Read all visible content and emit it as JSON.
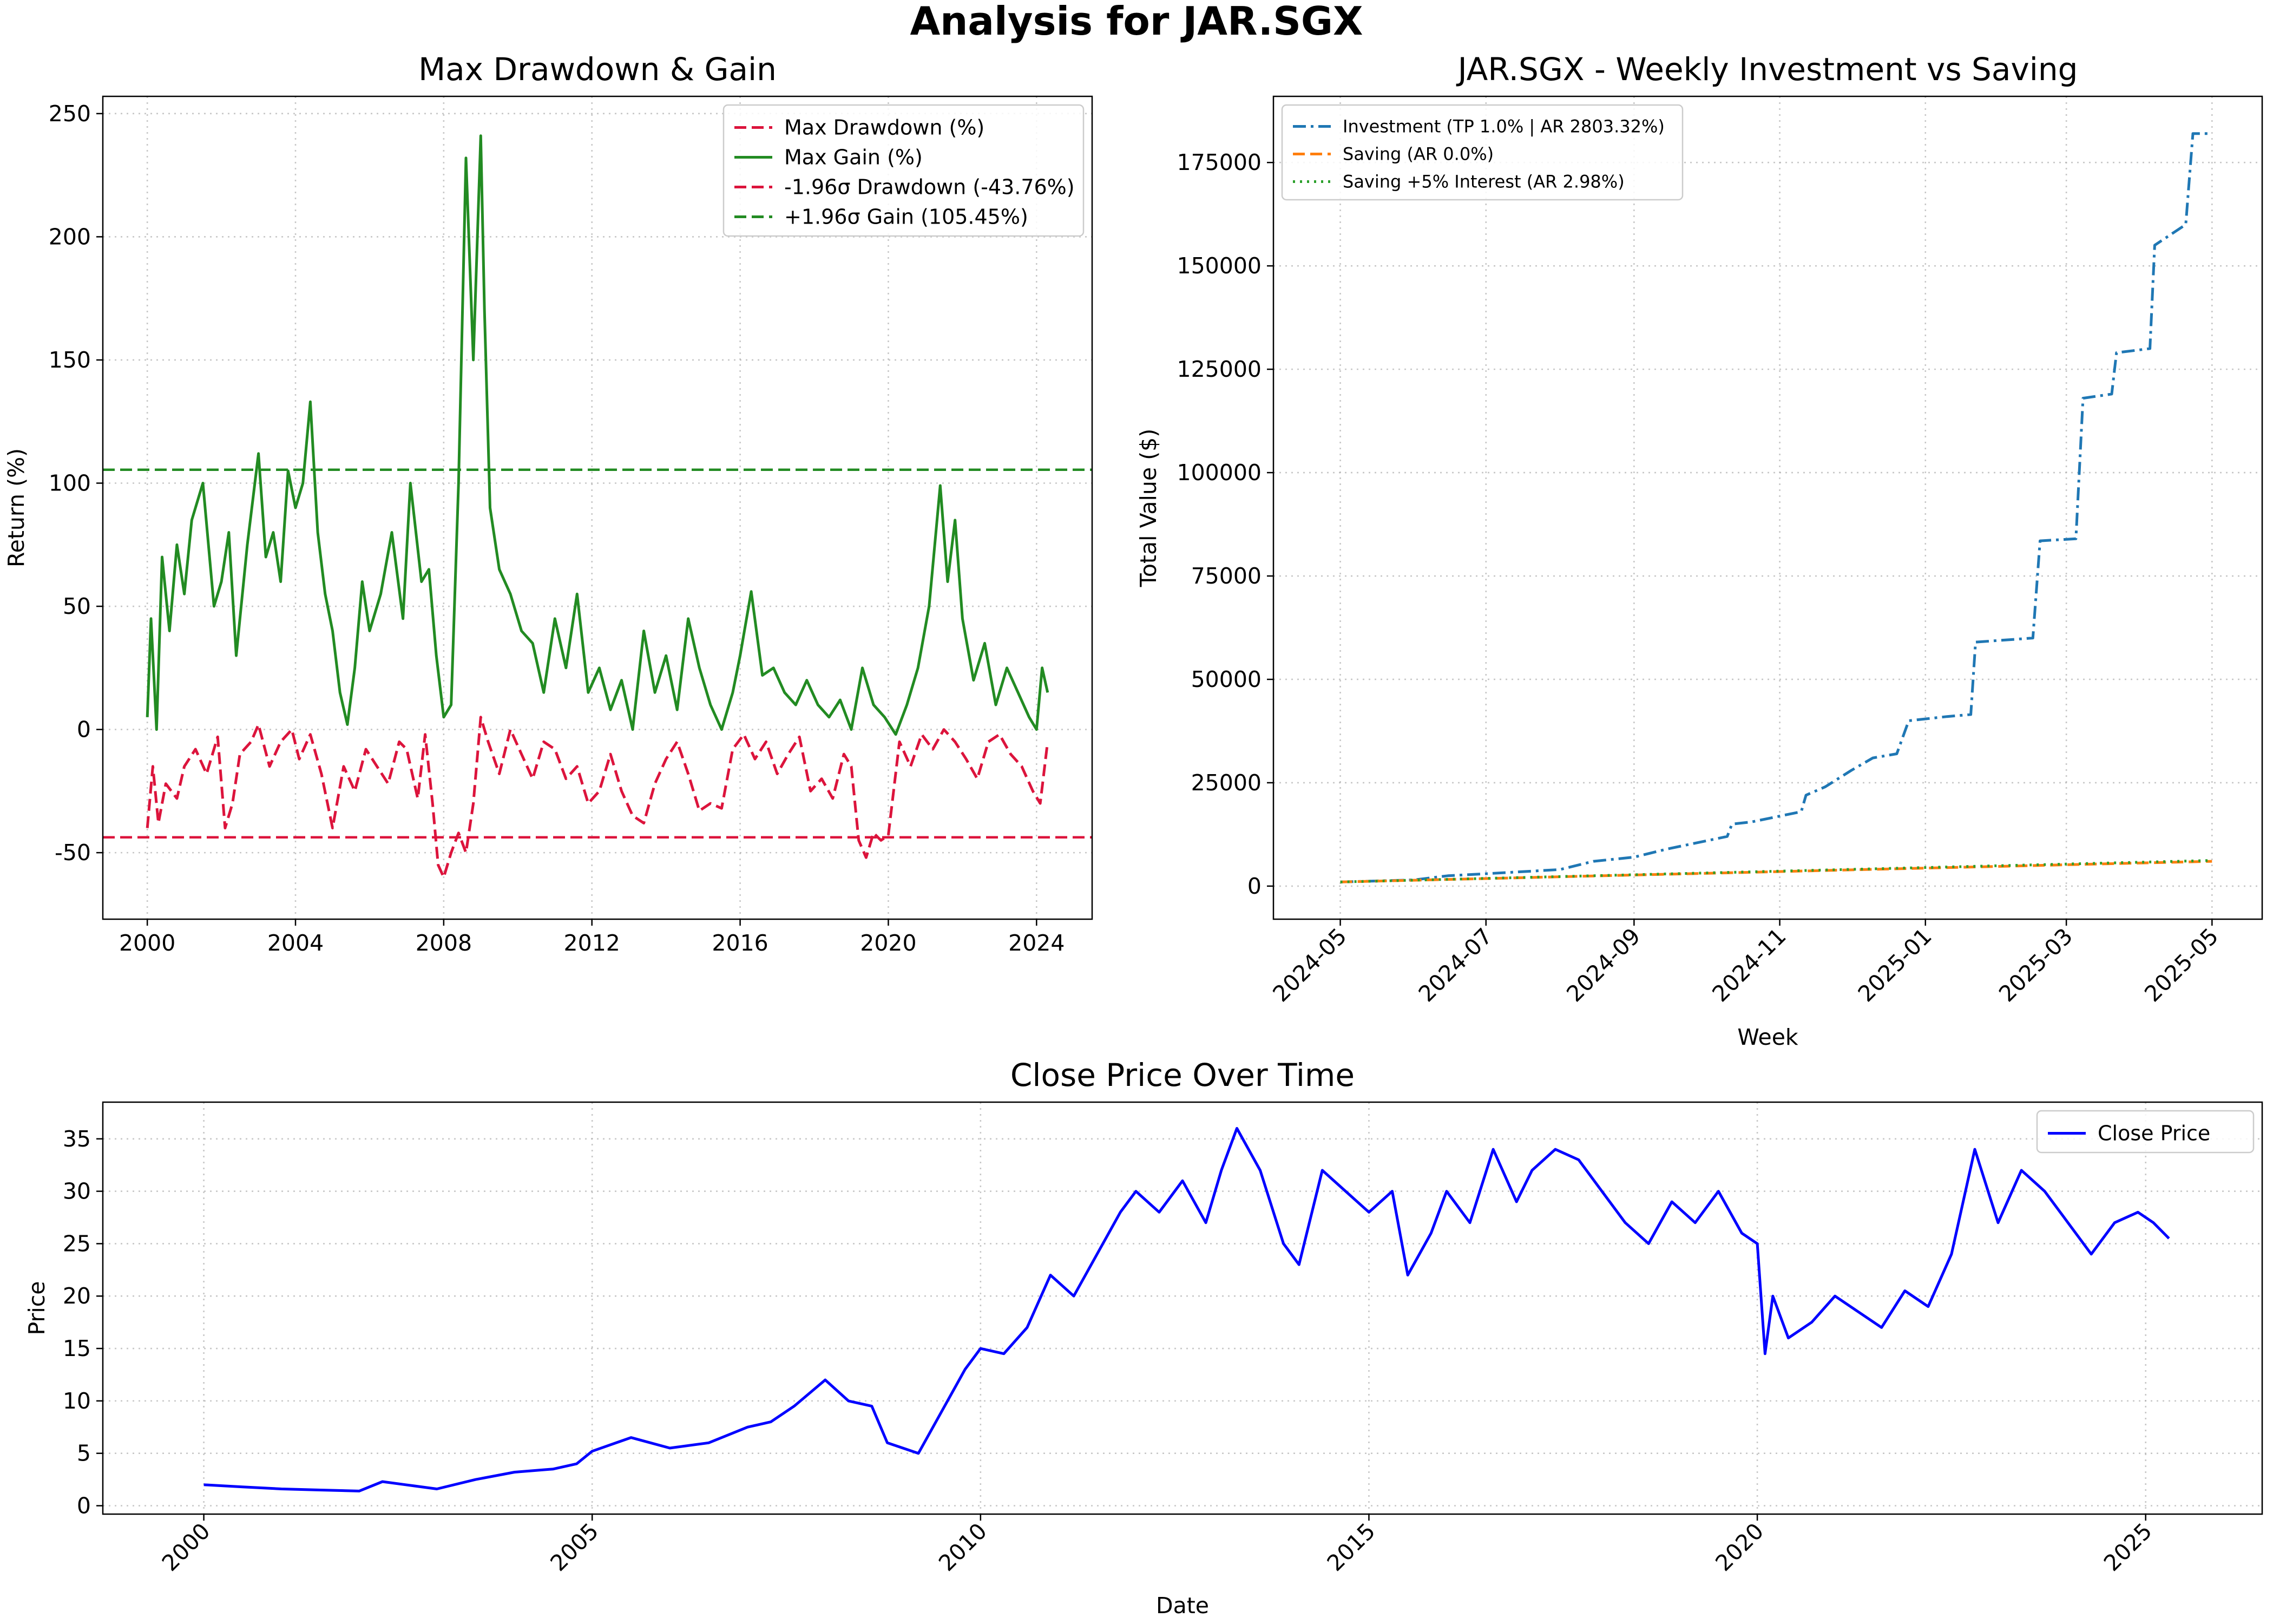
{
  "figure": {
    "title": "Analysis for JAR.SGX"
  },
  "chart_data": [
    {
      "id": "drawdown",
      "type": "line",
      "title": "Max Drawdown & Gain",
      "xlabel": "",
      "ylabel": "Return (%)",
      "xlim": [
        1998.8,
        2025.5
      ],
      "ylim": [
        -77,
        257
      ],
      "x_ticks": [
        2000,
        2004,
        2008,
        2012,
        2016,
        2020,
        2024
      ],
      "y_ticks": [
        -50,
        0,
        50,
        100,
        150,
        200,
        250
      ],
      "grid": true,
      "legend": "top-right",
      "series": [
        {
          "name": "Max Drawdown (%)",
          "color": "#dc143c",
          "style": "dashed",
          "x": [
            2000.0,
            2000.15,
            2000.3,
            2000.5,
            2000.8,
            2001.0,
            2001.3,
            2001.6,
            2001.9,
            2002.1,
            2002.3,
            2002.5,
            2002.8,
            2003.0,
            2003.3,
            2003.6,
            2003.9,
            2004.1,
            2004.4,
            2004.7,
            2005.0,
            2005.3,
            2005.6,
            2005.9,
            2006.2,
            2006.5,
            2006.8,
            2007.0,
            2007.3,
            2007.5,
            2007.7,
            2007.85,
            2008.0,
            2008.2,
            2008.4,
            2008.6,
            2008.8,
            2009.0,
            2009.2,
            2009.5,
            2009.8,
            2010.1,
            2010.4,
            2010.7,
            2011.0,
            2011.3,
            2011.6,
            2011.9,
            2012.2,
            2012.5,
            2012.8,
            2013.1,
            2013.4,
            2013.7,
            2014.0,
            2014.3,
            2014.6,
            2014.9,
            2015.2,
            2015.5,
            2015.8,
            2016.1,
            2016.4,
            2016.7,
            2017.0,
            2017.3,
            2017.6,
            2017.9,
            2018.2,
            2018.5,
            2018.8,
            2019.0,
            2019.2,
            2019.4,
            2019.6,
            2019.8,
            2020.0,
            2020.3,
            2020.6,
            2020.9,
            2021.2,
            2021.5,
            2021.8,
            2022.1,
            2022.4,
            2022.7,
            2023.0,
            2023.3,
            2023.6,
            2023.9,
            2024.1,
            2024.3
          ],
          "y": [
            -40,
            -15,
            -38,
            -22,
            -28,
            -15,
            -8,
            -18,
            -3,
            -40,
            -30,
            -10,
            -5,
            2,
            -15,
            -5,
            0,
            -12,
            -2,
            -18,
            -40,
            -15,
            -25,
            -8,
            -15,
            -22,
            -5,
            -8,
            -28,
            -2,
            -30,
            -55,
            -60,
            -50,
            -42,
            -50,
            -30,
            5,
            -5,
            -18,
            0,
            -10,
            -20,
            -5,
            -8,
            -20,
            -15,
            -30,
            -25,
            -10,
            -25,
            -35,
            -38,
            -22,
            -12,
            -5,
            -18,
            -33,
            -30,
            -32,
            -8,
            -2,
            -12,
            -5,
            -18,
            -10,
            -3,
            -25,
            -20,
            -28,
            -10,
            -15,
            -45,
            -52,
            -42,
            -45,
            -43,
            -5,
            -15,
            -2,
            -8,
            0,
            -5,
            -12,
            -20,
            -5,
            -2,
            -10,
            -15,
            -25,
            -30,
            -5
          ]
        },
        {
          "name": "Max Gain (%)",
          "color": "#228b22",
          "style": "solid",
          "x": [
            2000.0,
            2000.1,
            2000.25,
            2000.4,
            2000.6,
            2000.8,
            2001.0,
            2001.2,
            2001.5,
            2001.8,
            2002.0,
            2002.2,
            2002.4,
            2002.7,
            2003.0,
            2003.2,
            2003.4,
            2003.6,
            2003.8,
            2004.0,
            2004.2,
            2004.4,
            2004.6,
            2004.8,
            2005.0,
            2005.2,
            2005.4,
            2005.6,
            2005.8,
            2006.0,
            2006.3,
            2006.6,
            2006.9,
            2007.1,
            2007.4,
            2007.6,
            2007.8,
            2008.0,
            2008.2,
            2008.4,
            2008.6,
            2008.8,
            2009.0,
            2009.1,
            2009.25,
            2009.5,
            2009.8,
            2010.1,
            2010.4,
            2010.7,
            2011.0,
            2011.3,
            2011.6,
            2011.9,
            2012.2,
            2012.5,
            2012.8,
            2013.1,
            2013.4,
            2013.7,
            2014.0,
            2014.3,
            2014.6,
            2014.9,
            2015.2,
            2015.5,
            2015.8,
            2016.0,
            2016.3,
            2016.6,
            2016.9,
            2017.2,
            2017.5,
            2017.8,
            2018.1,
            2018.4,
            2018.7,
            2019.0,
            2019.3,
            2019.6,
            2019.9,
            2020.2,
            2020.5,
            2020.8,
            2021.1,
            2021.4,
            2021.6,
            2021.8,
            2022.0,
            2022.3,
            2022.6,
            2022.9,
            2023.2,
            2023.5,
            2023.8,
            2024.0,
            2024.15,
            2024.3
          ],
          "y": [
            5,
            45,
            0,
            70,
            40,
            75,
            55,
            85,
            100,
            50,
            60,
            80,
            30,
            75,
            112,
            70,
            80,
            60,
            105,
            90,
            100,
            133,
            80,
            55,
            40,
            15,
            2,
            25,
            60,
            40,
            55,
            80,
            45,
            100,
            60,
            65,
            30,
            5,
            10,
            100,
            232,
            150,
            241,
            170,
            90,
            65,
            55,
            40,
            35,
            15,
            45,
            25,
            55,
            15,
            25,
            8,
            20,
            0,
            40,
            15,
            30,
            8,
            45,
            25,
            10,
            0,
            15,
            30,
            56,
            22,
            25,
            15,
            10,
            20,
            10,
            5,
            12,
            0,
            25,
            10,
            5,
            -2,
            10,
            25,
            50,
            99,
            60,
            85,
            45,
            20,
            35,
            10,
            25,
            15,
            5,
            0,
            25,
            15
          ]
        },
        {
          "name": "-1.96σ Drawdown (-43.76%)",
          "color": "#dc143c",
          "style": "dashed",
          "value": -43.76
        },
        {
          "name": "+1.96σ Gain (105.45%)",
          "color": "#228b22",
          "style": "dashed",
          "value": 105.45
        }
      ]
    },
    {
      "id": "investment",
      "type": "line",
      "title": "JAR.SGX - Weekly Investment vs Saving",
      "xlabel": "Week",
      "ylabel": "Total Value ($)",
      "x_ticks": [
        "2024-05",
        "2024-07",
        "2024-09",
        "2024-11",
        "2025-01",
        "2025-03",
        "2025-05"
      ],
      "xlim": [
        "2024-04-03",
        "2025-05-22"
      ],
      "ylim": [
        -8000,
        191000
      ],
      "y_ticks": [
        0,
        25000,
        50000,
        75000,
        100000,
        125000,
        150000,
        175000
      ],
      "grid": true,
      "legend": "top-left",
      "series": [
        {
          "name": "Investment (TP 1.0% | AR 2803.32%)",
          "color": "#1f77b4",
          "style": "dashdot",
          "x": [
            "2024-05-01",
            "2024-06-01",
            "2024-06-15",
            "2024-07-01",
            "2024-08-01",
            "2024-08-15",
            "2024-09-01",
            "2024-09-15",
            "2024-10-10",
            "2024-10-12",
            "2024-10-20",
            "2024-11-10",
            "2024-11-12",
            "2024-11-20",
            "2024-12-01",
            "2024-12-10",
            "2024-12-20",
            "2024-12-25",
            "2025-01-10",
            "2025-01-20",
            "2025-01-22",
            "2025-02-15",
            "2025-02-18",
            "2025-03-05",
            "2025-03-08",
            "2025-03-20",
            "2025-03-22",
            "2025-04-05",
            "2025-04-07",
            "2025-04-20",
            "2025-04-23",
            "2025-05-01"
          ],
          "y": [
            1000,
            1500,
            2500,
            3000,
            4000,
            6000,
            7000,
            9000,
            12000,
            15000,
            15500,
            18000,
            22000,
            24000,
            28000,
            31000,
            32000,
            40000,
            41000,
            41500,
            59000,
            60000,
            83500,
            84000,
            118000,
            119000,
            129000,
            130000,
            155000,
            160000,
            182000,
            182000
          ]
        },
        {
          "name": "Saving (AR 0.0%)",
          "color": "#ff7f0e",
          "style": "dashed",
          "x": [
            "2024-05-01",
            "2025-05-01"
          ],
          "y": [
            1000,
            6000
          ]
        },
        {
          "name": "Saving +5% Interest (AR 2.98%)",
          "color": "#2ca02c",
          "style": "dotted",
          "x": [
            "2024-05-01",
            "2025-05-01"
          ],
          "y": [
            1000,
            6200
          ]
        }
      ]
    },
    {
      "id": "close",
      "type": "line",
      "title": "Close Price Over Time",
      "xlabel": "Date",
      "ylabel": "Price",
      "xlim": [
        1998.7,
        2026.5
      ],
      "ylim": [
        -0.8,
        38.5
      ],
      "x_ticks": [
        2000,
        2005,
        2010,
        2015,
        2020,
        2025
      ],
      "y_ticks": [
        0,
        5,
        10,
        15,
        20,
        25,
        30,
        35
      ],
      "grid": true,
      "legend": "top-right",
      "series": [
        {
          "name": "Close Price",
          "color": "#0000ff",
          "style": "solid",
          "x": [
            2000.0,
            2000.5,
            2001.0,
            2001.5,
            2002.0,
            2002.3,
            2002.6,
            2003.0,
            2003.5,
            2004.0,
            2004.5,
            2004.8,
            2005.0,
            2005.5,
            2006.0,
            2006.5,
            2007.0,
            2007.3,
            2007.6,
            2008.0,
            2008.3,
            2008.6,
            2008.8,
            2009.0,
            2009.2,
            2009.5,
            2009.8,
            2010.0,
            2010.3,
            2010.6,
            2010.9,
            2011.2,
            2011.5,
            2011.8,
            2012.0,
            2012.3,
            2012.6,
            2012.9,
            2013.1,
            2013.3,
            2013.6,
            2013.9,
            2014.1,
            2014.4,
            2014.7,
            2015.0,
            2015.3,
            2015.5,
            2015.8,
            2016.0,
            2016.3,
            2016.6,
            2016.9,
            2017.1,
            2017.4,
            2017.7,
            2018.0,
            2018.3,
            2018.6,
            2018.9,
            2019.2,
            2019.5,
            2019.8,
            2020.0,
            2020.1,
            2020.2,
            2020.4,
            2020.7,
            2021.0,
            2021.3,
            2021.6,
            2021.9,
            2022.2,
            2022.5,
            2022.8,
            2023.1,
            2023.4,
            2023.7,
            2024.0,
            2024.3,
            2024.6,
            2024.9,
            2025.1,
            2025.3
          ],
          "y": [
            2.0,
            1.8,
            1.6,
            1.5,
            1.4,
            2.3,
            2.0,
            1.6,
            2.5,
            3.2,
            3.5,
            4.0,
            5.2,
            6.5,
            5.5,
            6.0,
            7.5,
            8.0,
            9.5,
            12.0,
            10.0,
            9.5,
            6.0,
            5.5,
            5.0,
            9.0,
            13.0,
            15.0,
            14.5,
            17.0,
            22.0,
            20.0,
            24.0,
            28.0,
            30.0,
            28.0,
            31.0,
            27.0,
            32.0,
            36.0,
            32.0,
            25.0,
            23.0,
            32.0,
            30.0,
            28.0,
            30.0,
            22.0,
            26.0,
            30.0,
            27.0,
            34.0,
            29.0,
            32.0,
            34.0,
            33.0,
            30.0,
            27.0,
            25.0,
            29.0,
            27.0,
            30.0,
            26.0,
            25.0,
            14.5,
            20.0,
            16.0,
            17.5,
            20.0,
            18.5,
            17.0,
            20.5,
            19.0,
            24.0,
            34.0,
            27.0,
            32.0,
            30.0,
            27.0,
            24.0,
            27.0,
            28.0,
            27.0,
            25.5
          ]
        }
      ]
    }
  ]
}
